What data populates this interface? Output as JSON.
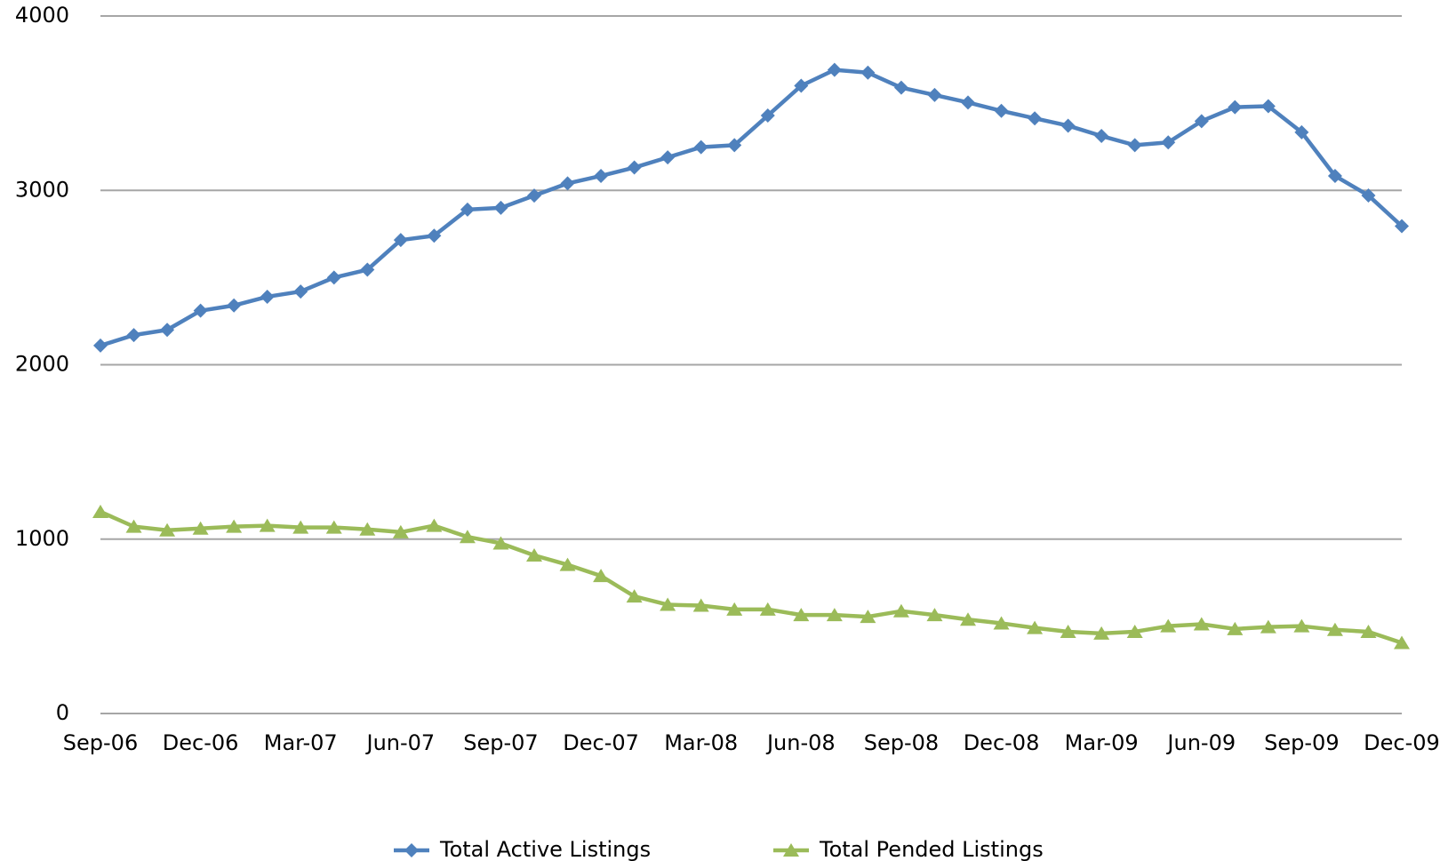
{
  "chart_data": {
    "type": "line",
    "categories": [
      "Sep-06",
      null,
      null,
      "Dec-06",
      null,
      null,
      "Mar-07",
      null,
      null,
      "Jun-07",
      null,
      null,
      "Sep-07",
      null,
      null,
      "Dec-07",
      null,
      null,
      "Mar-08",
      null,
      null,
      "Jun-08",
      null,
      null,
      "Sep-08",
      null,
      null,
      "Dec-08",
      null,
      null,
      "Mar-09",
      null,
      null,
      "Jun-09",
      null,
      null,
      "Sep-09",
      null,
      null,
      "Dec-09"
    ],
    "series": [
      {
        "name": "Total Active Listings",
        "color": "#4f81bd",
        "marker": "diamond",
        "values": [
          2110,
          2170,
          2200,
          2310,
          2340,
          2390,
          2420,
          2500,
          2545,
          2715,
          2740,
          2890,
          2900,
          2970,
          3040,
          3083,
          3131,
          3189,
          3248,
          3259,
          3429,
          3600,
          3691,
          3675,
          3589,
          3547,
          3504,
          3456,
          3413,
          3371,
          3312,
          3259,
          3275,
          3397,
          3477,
          3483,
          3333,
          3083,
          2971,
          2795
        ]
      },
      {
        "name": "Total Pended Listings",
        "color": "#9bbb59",
        "marker": "triangle",
        "values": [
          1157,
          1072,
          1051,
          1061,
          1072,
          1077,
          1067,
          1067,
          1056,
          1040,
          1077,
          1013,
          976,
          907,
          853,
          789,
          672,
          624,
          619,
          597,
          597,
          565,
          565,
          555,
          587,
          565,
          539,
          517,
          491,
          469,
          459,
          469,
          501,
          512,
          485,
          496,
          501,
          480,
          469,
          405
        ]
      }
    ],
    "ylim": [
      0,
      4000
    ],
    "yticks": [
      0,
      1000,
      2000,
      3000,
      4000
    ],
    "grid": true,
    "legend": "bottom"
  }
}
